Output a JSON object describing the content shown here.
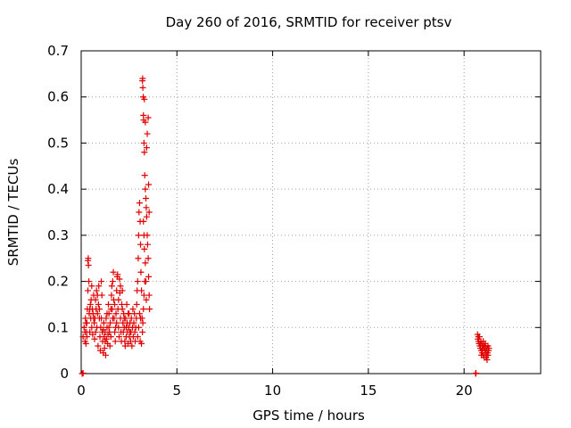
{
  "chart_data": {
    "type": "scatter",
    "title": "Day 260 of 2016, SRMTID for receiver ptsv",
    "xlabel": "GPS time / hours",
    "ylabel": "SRMTID / TECUs",
    "xlim": [
      0,
      24
    ],
    "ylim": [
      0,
      0.7
    ],
    "grid": true,
    "marker": "+",
    "color": "#e00000",
    "xticks": [
      0,
      5,
      10,
      15,
      20
    ],
    "xtick_labels": [
      "0",
      "5",
      "10",
      "15",
      "20"
    ],
    "yticks": [
      0,
      0.1,
      0.2,
      0.3,
      0.4,
      0.5,
      0.6,
      0.7
    ],
    "ytick_labels": [
      "0",
      "0.1",
      "0.2",
      "0.3",
      "0.4",
      "0.5",
      "0.6",
      "0.7"
    ],
    "series": [
      {
        "name": "SRMTID",
        "points": [
          [
            0.05,
            0.0
          ],
          [
            0.1,
            0.001
          ],
          [
            20.6,
            0.0
          ],
          [
            20.62,
            0.001
          ],
          [
            0.1,
            0.08
          ],
          [
            0.15,
            0.1
          ],
          [
            0.2,
            0.07
          ],
          [
            0.22,
            0.12
          ],
          [
            0.25,
            0.065
          ],
          [
            0.28,
            0.09
          ],
          [
            0.3,
            0.11
          ],
          [
            0.32,
            0.14
          ],
          [
            0.35,
            0.18
          ],
          [
            0.35,
            0.245
          ],
          [
            0.37,
            0.25
          ],
          [
            0.38,
            0.235
          ],
          [
            0.4,
            0.2
          ],
          [
            0.42,
            0.13
          ],
          [
            0.45,
            0.09
          ],
          [
            0.48,
            0.15
          ],
          [
            0.5,
            0.12
          ],
          [
            0.52,
            0.16
          ],
          [
            0.55,
            0.1
          ],
          [
            0.58,
            0.14
          ],
          [
            0.6,
            0.085
          ],
          [
            0.62,
            0.13
          ],
          [
            0.65,
            0.17
          ],
          [
            0.68,
            0.11
          ],
          [
            0.7,
            0.075
          ],
          [
            0.72,
            0.12
          ],
          [
            0.75,
            0.16
          ],
          [
            0.78,
            0.14
          ],
          [
            0.8,
            0.18
          ],
          [
            0.82,
            0.1
          ],
          [
            0.85,
            0.13
          ],
          [
            0.88,
            0.06
          ],
          [
            0.9,
            0.15
          ],
          [
            0.92,
            0.19
          ],
          [
            0.95,
            0.12
          ],
          [
            0.98,
            0.08
          ],
          [
            1.0,
            0.05
          ],
          [
            1.02,
            0.1
          ],
          [
            1.05,
            0.2
          ],
          [
            1.08,
            0.17
          ],
          [
            1.1,
            0.09
          ],
          [
            1.12,
            0.07
          ],
          [
            1.15,
            0.045
          ],
          [
            1.18,
            0.11
          ],
          [
            1.2,
            0.08
          ],
          [
            1.22,
            0.055
          ],
          [
            1.25,
            0.09
          ],
          [
            1.28,
            0.04
          ],
          [
            1.3,
            0.12
          ],
          [
            1.32,
            0.075
          ],
          [
            1.35,
            0.1
          ],
          [
            1.38,
            0.065
          ],
          [
            1.4,
            0.085
          ],
          [
            1.42,
            0.15
          ],
          [
            1.45,
            0.13
          ],
          [
            1.48,
            0.09
          ],
          [
            1.5,
            0.06
          ],
          [
            1.52,
            0.11
          ],
          [
            1.55,
            0.08
          ],
          [
            1.58,
            0.17
          ],
          [
            1.6,
            0.19
          ],
          [
            1.62,
            0.14
          ],
          [
            1.65,
            0.2
          ],
          [
            1.68,
            0.22
          ],
          [
            1.7,
            0.16
          ],
          [
            1.72,
            0.12
          ],
          [
            1.75,
            0.09
          ],
          [
            1.78,
            0.07
          ],
          [
            1.8,
            0.1
          ],
          [
            1.82,
            0.13
          ],
          [
            1.85,
            0.18
          ],
          [
            1.88,
            0.21
          ],
          [
            1.9,
            0.215
          ],
          [
            1.92,
            0.14
          ],
          [
            1.95,
            0.1
          ],
          [
            1.98,
            0.08
          ],
          [
            2.0,
            0.205
          ],
          [
            2.02,
            0.175
          ],
          [
            2.05,
            0.12
          ],
          [
            2.08,
            0.09
          ],
          [
            2.1,
            0.07
          ],
          [
            2.12,
            0.15
          ],
          [
            2.15,
            0.18
          ],
          [
            2.18,
            0.11
          ],
          [
            2.2,
            0.09
          ],
          [
            2.22,
            0.13
          ],
          [
            2.25,
            0.1
          ],
          [
            2.28,
            0.07
          ],
          [
            2.3,
            0.06
          ],
          [
            2.32,
            0.12
          ],
          [
            2.35,
            0.08
          ],
          [
            2.38,
            0.15
          ],
          [
            2.4,
            0.11
          ],
          [
            2.42,
            0.09
          ],
          [
            2.45,
            0.065
          ],
          [
            2.48,
            0.1
          ],
          [
            2.5,
            0.13
          ],
          [
            2.52,
            0.08
          ],
          [
            2.55,
            0.11
          ],
          [
            2.58,
            0.07
          ],
          [
            2.6,
            0.09
          ],
          [
            2.62,
            0.12
          ],
          [
            2.65,
            0.06
          ],
          [
            2.68,
            0.1
          ],
          [
            2.7,
            0.14
          ],
          [
            2.72,
            0.08
          ],
          [
            2.75,
            0.11
          ],
          [
            2.78,
            0.13
          ],
          [
            2.8,
            0.09
          ],
          [
            2.82,
            0.07
          ],
          [
            2.85,
            0.1
          ],
          [
            2.88,
            0.12
          ],
          [
            2.9,
            0.15
          ],
          [
            2.92,
            0.18
          ],
          [
            2.95,
            0.2
          ],
          [
            2.98,
            0.25
          ],
          [
            3.0,
            0.3
          ],
          [
            3.02,
            0.35
          ],
          [
            3.05,
            0.37
          ],
          [
            3.08,
            0.33
          ],
          [
            3.1,
            0.28
          ],
          [
            3.12,
            0.22
          ],
          [
            3.15,
            0.18
          ],
          [
            3.18,
            0.12
          ],
          [
            3.2,
            0.635
          ],
          [
            3.21,
            0.64
          ],
          [
            3.22,
            0.62
          ],
          [
            3.24,
            0.6
          ],
          [
            3.25,
            0.56
          ],
          [
            3.26,
            0.55
          ],
          [
            3.28,
            0.5
          ],
          [
            3.3,
            0.48
          ],
          [
            3.32,
            0.43
          ],
          [
            3.35,
            0.4
          ],
          [
            3.38,
            0.38
          ],
          [
            3.4,
            0.36
          ],
          [
            3.42,
            0.34
          ],
          [
            3.45,
            0.3
          ],
          [
            3.47,
            0.28
          ],
          [
            3.5,
            0.25
          ],
          [
            3.52,
            0.21
          ],
          [
            3.55,
            0.17
          ],
          [
            3.57,
            0.14
          ],
          [
            3.3,
            0.595
          ],
          [
            3.35,
            0.545
          ],
          [
            3.42,
            0.49
          ],
          [
            3.45,
            0.52
          ],
          [
            3.5,
            0.555
          ],
          [
            3.52,
            0.41
          ],
          [
            3.55,
            0.35
          ],
          [
            3.25,
            0.33
          ],
          [
            3.28,
            0.3
          ],
          [
            3.3,
            0.27
          ],
          [
            3.35,
            0.24
          ],
          [
            3.38,
            0.2
          ],
          [
            3.4,
            0.16
          ],
          [
            3.15,
            0.065
          ],
          [
            3.2,
            0.09
          ],
          [
            3.22,
            0.11
          ],
          [
            3.25,
            0.14
          ],
          [
            3.28,
            0.17
          ],
          [
            3.32,
            0.2
          ],
          [
            2.95,
            0.08
          ],
          [
            3.0,
            0.1
          ],
          [
            3.05,
            0.13
          ],
          [
            3.08,
            0.07
          ],
          [
            3.1,
            0.12
          ],
          [
            0.2,
            0.09
          ],
          [
            0.25,
            0.11
          ],
          [
            0.3,
            0.08
          ],
          [
            0.45,
            0.14
          ],
          [
            0.55,
            0.19
          ],
          [
            0.65,
            0.12
          ],
          [
            0.75,
            0.09
          ],
          [
            0.85,
            0.17
          ],
          [
            0.95,
            0.14
          ],
          [
            1.05,
            0.12
          ],
          [
            1.15,
            0.095
          ],
          [
            1.25,
            0.07
          ],
          [
            1.35,
            0.13
          ],
          [
            1.45,
            0.1
          ],
          [
            1.55,
            0.14
          ],
          [
            1.65,
            0.12
          ],
          [
            1.75,
            0.15
          ],
          [
            1.85,
            0.11
          ],
          [
            1.95,
            0.16
          ],
          [
            2.05,
            0.19
          ],
          [
            2.15,
            0.14
          ],
          [
            2.25,
            0.12
          ],
          [
            2.35,
            0.1
          ],
          [
            2.45,
            0.13
          ],
          [
            2.55,
            0.09
          ],
          [
            20.7,
            0.085
          ],
          [
            20.72,
            0.075
          ],
          [
            20.75,
            0.07
          ],
          [
            20.78,
            0.065
          ],
          [
            20.8,
            0.08
          ],
          [
            20.82,
            0.06
          ],
          [
            20.85,
            0.055
          ],
          [
            20.88,
            0.07
          ],
          [
            20.9,
            0.05
          ],
          [
            20.92,
            0.065
          ],
          [
            20.95,
            0.045
          ],
          [
            20.98,
            0.06
          ],
          [
            21.0,
            0.04
          ],
          [
            21.02,
            0.055
          ],
          [
            21.05,
            0.035
          ],
          [
            21.08,
            0.05
          ],
          [
            21.1,
            0.045
          ],
          [
            21.12,
            0.06
          ],
          [
            21.15,
            0.05
          ],
          [
            21.18,
            0.04
          ],
          [
            21.2,
            0.055
          ],
          [
            21.22,
            0.045
          ],
          [
            21.25,
            0.06
          ],
          [
            21.28,
            0.05
          ],
          [
            21.3,
            0.055
          ],
          [
            20.75,
            0.08
          ],
          [
            20.85,
            0.065
          ],
          [
            20.95,
            0.055
          ],
          [
            21.05,
            0.06
          ],
          [
            21.15,
            0.035
          ],
          [
            21.25,
            0.04
          ],
          [
            20.9,
            0.04
          ],
          [
            21.0,
            0.07
          ],
          [
            21.1,
            0.065
          ],
          [
            21.2,
            0.03
          ]
        ]
      }
    ]
  }
}
